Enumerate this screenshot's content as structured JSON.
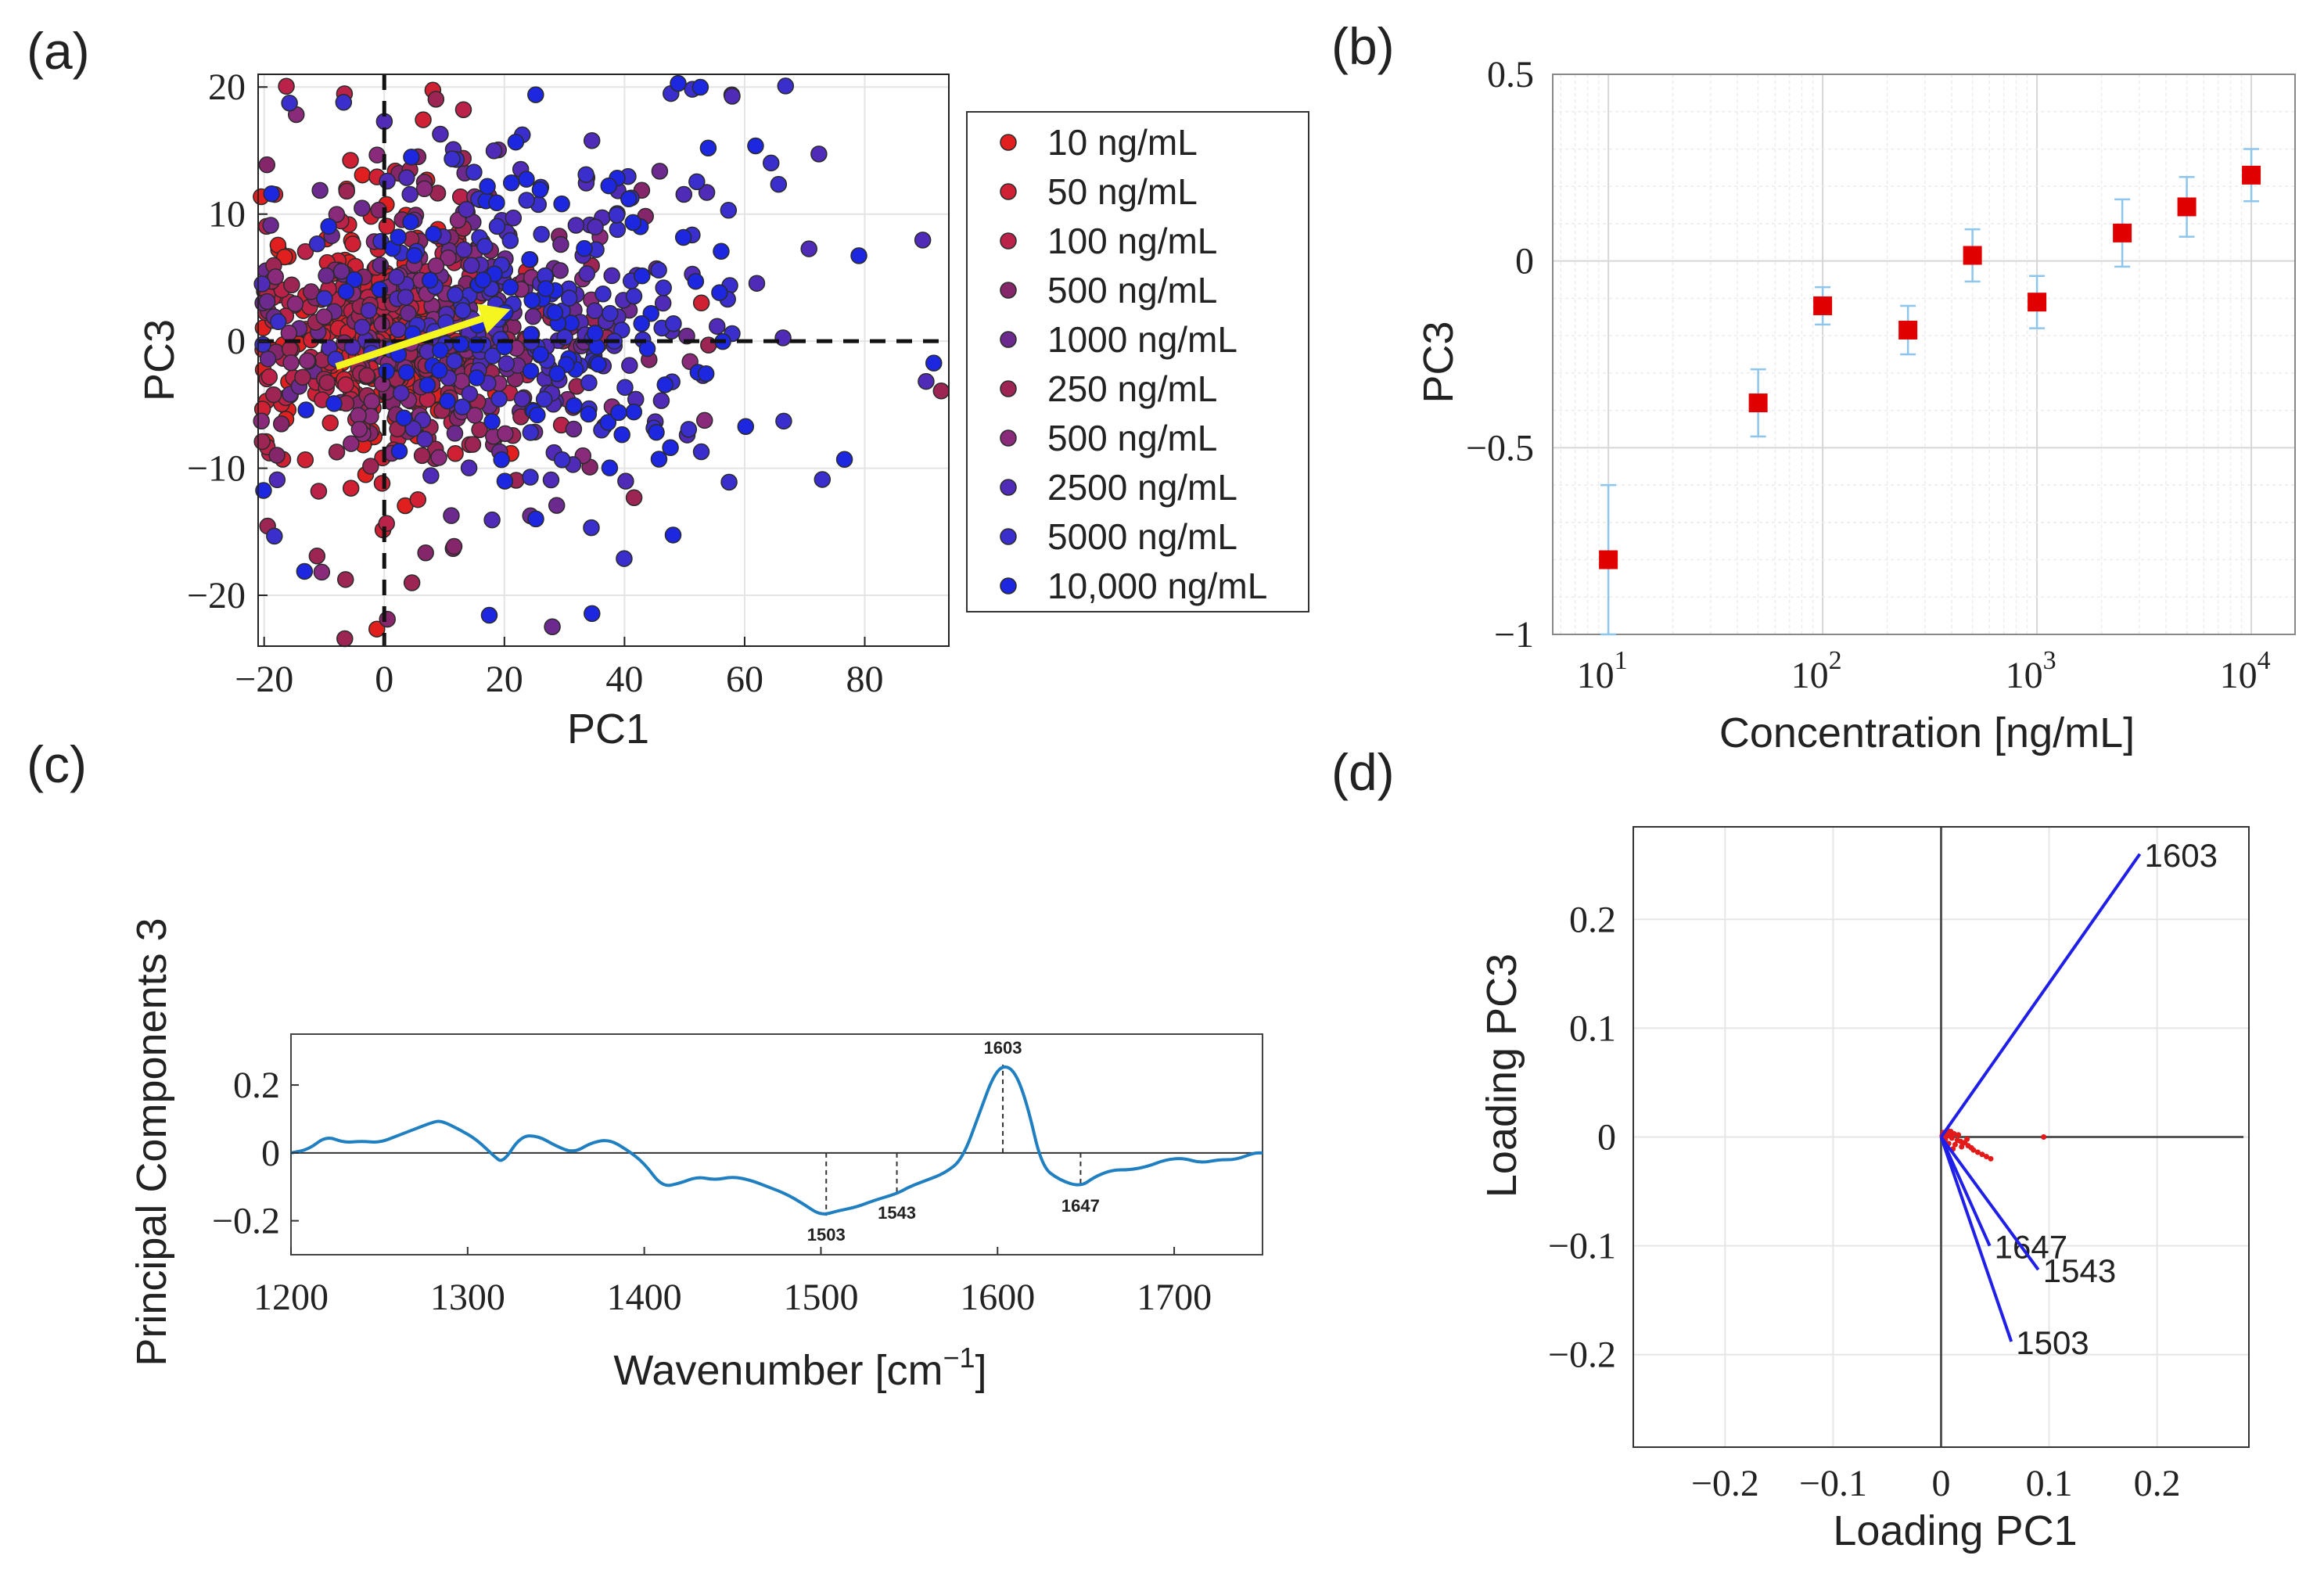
{
  "panels": {
    "a": {
      "label": "(a)"
    },
    "b": {
      "label": "(b)"
    },
    "c": {
      "label": "(c)"
    },
    "d": {
      "label": "(d)"
    }
  },
  "chart_data": [
    {
      "id": "a",
      "type": "scatter",
      "title": "",
      "xlabel": "PC1",
      "ylabel": "PC3",
      "xlim": [
        -21,
        94
      ],
      "ylim": [
        -24,
        21
      ],
      "xticks": [
        -20,
        0,
        20,
        40,
        60,
        80
      ],
      "yticks": [
        -20,
        -10,
        0,
        10,
        20
      ],
      "xtick_labels": [
        "−20",
        "0",
        "20",
        "40",
        "60",
        "80"
      ],
      "ytick_labels": [
        "−20",
        "−10",
        "0",
        "10",
        "20"
      ],
      "grid": true,
      "legend_position": "right",
      "reference_lines": {
        "x": 0,
        "y": 0,
        "style": "dashed"
      },
      "arrow": {
        "from": [
          -8,
          -2
        ],
        "to": [
          21,
          2.5
        ],
        "color": "#f5f520"
      },
      "series": [
        {
          "name": "10 ng/mL",
          "color": "#e21f1f",
          "center": [
            -2,
            1
          ],
          "spread": [
            10,
            4.5
          ],
          "count": 140
        },
        {
          "name": "50 ng/mL",
          "color": "#cf2034",
          "center": [
            0,
            0.5
          ],
          "spread": [
            11,
            5
          ],
          "count": 130
        },
        {
          "name": "100 ng/mL",
          "color": "#bb2249",
          "center": [
            3,
            1
          ],
          "spread": [
            13,
            5.5
          ],
          "count": 120
        },
        {
          "name": "500 ng/mL",
          "color": "#85266a",
          "center": [
            8,
            0.5
          ],
          "spread": [
            16,
            6.5
          ],
          "count": 90
        },
        {
          "name": "1000 ng/mL",
          "color": "#6d2a8e",
          "center": [
            12,
            2
          ],
          "spread": [
            18,
            7
          ],
          "count": 90
        },
        {
          "name": "250 ng/mL",
          "color": "#9c2553",
          "center": [
            6,
            -1
          ],
          "spread": [
            16,
            7
          ],
          "count": 90
        },
        {
          "name": "500 ng/mL",
          "color": "#8a2a7a",
          "center": [
            10,
            1
          ],
          "spread": [
            18,
            7
          ],
          "count": 80
        },
        {
          "name": "2500 ng/mL",
          "color": "#4f2bb8",
          "center": [
            22,
            3
          ],
          "spread": [
            20,
            8
          ],
          "count": 120
        },
        {
          "name": "5000 ng/mL",
          "color": "#3a2fcc",
          "center": [
            26,
            3
          ],
          "spread": [
            20,
            8
          ],
          "count": 110
        },
        {
          "name": "10,000 ng/mL",
          "color": "#1d27e0",
          "center": [
            24,
            2
          ],
          "spread": [
            22,
            9
          ],
          "count": 110
        }
      ]
    },
    {
      "id": "b",
      "type": "scatter",
      "title": "",
      "xlabel": "Concentration [ng/mL]",
      "ylabel": "PC3",
      "xscale": "log",
      "xlim": [
        5.5,
        16000
      ],
      "ylim": [
        -1,
        0.5
      ],
      "yticks": [
        -1,
        -0.5,
        0,
        0.5
      ],
      "ytick_labels": [
        "−1",
        "−0.5",
        "0",
        "0.5"
      ],
      "xtick_labels": [
        {
          "base": "10",
          "exp": "1"
        },
        {
          "base": "10",
          "exp": "2"
        },
        {
          "base": "10",
          "exp": "3"
        },
        {
          "base": "10",
          "exp": "4"
        }
      ],
      "grid": true,
      "marker_color": "#e00000",
      "errorbar_color": "#8ec5ec",
      "x": [
        10,
        50,
        100,
        250,
        500,
        1000,
        2500,
        5000,
        10000
      ],
      "y": [
        -0.8,
        -0.38,
        -0.12,
        -0.185,
        0.015,
        -0.11,
        0.075,
        0.145,
        0.23
      ],
      "yerr": [
        0.2,
        0.09,
        0.05,
        0.065,
        0.07,
        0.07,
        0.09,
        0.08,
        0.07
      ]
    },
    {
      "id": "c",
      "type": "line",
      "title": "",
      "xlabel": "Wavenumber [cm",
      "xlabel_sup": "−1",
      "xlabel_suffix": "]",
      "ylabel": "Principal Components 3",
      "xlim": [
        1200,
        1750
      ],
      "ylim": [
        -0.3,
        0.35
      ],
      "xticks": [
        1200,
        1300,
        1400,
        1500,
        1600,
        1700
      ],
      "yticks": [
        -0.2,
        0,
        0.2
      ],
      "ytick_labels": [
        "−0.2",
        "0",
        "0.2"
      ],
      "line_color": "#1f7fc0",
      "x": [
        1200,
        1210,
        1220,
        1230,
        1240,
        1250,
        1260,
        1270,
        1280,
        1285,
        1295,
        1305,
        1315,
        1320,
        1330,
        1340,
        1350,
        1360,
        1370,
        1380,
        1390,
        1400,
        1410,
        1420,
        1430,
        1440,
        1450,
        1460,
        1470,
        1480,
        1490,
        1500,
        1510,
        1520,
        1530,
        1543,
        1550,
        1560,
        1570,
        1580,
        1590,
        1597,
        1603,
        1610,
        1617,
        1625,
        1635,
        1647,
        1655,
        1665,
        1675,
        1685,
        1695,
        1705,
        1715,
        1725,
        1735,
        1745,
        1750
      ],
      "y": [
        0.0,
        0.01,
        0.05,
        0.03,
        0.035,
        0.03,
        0.05,
        0.07,
        0.09,
        0.095,
        0.07,
        0.04,
        -0.01,
        -0.03,
        0.05,
        0.05,
        0.02,
        0.0,
        0.03,
        0.04,
        0.01,
        -0.03,
        -0.1,
        -0.09,
        -0.07,
        -0.08,
        -0.07,
        -0.08,
        -0.1,
        -0.12,
        -0.15,
        -0.185,
        -0.17,
        -0.16,
        -0.14,
        -0.12,
        -0.1,
        -0.08,
        -0.06,
        -0.02,
        0.12,
        0.22,
        0.26,
        0.24,
        0.14,
        -0.04,
        -0.08,
        -0.1,
        -0.07,
        -0.05,
        -0.05,
        -0.04,
        -0.02,
        -0.015,
        -0.03,
        -0.02,
        -0.02,
        0.0,
        0.0
      ],
      "annotations": [
        {
          "x": 1503,
          "y": -0.185,
          "label": "1503",
          "position": "below"
        },
        {
          "x": 1543,
          "y": -0.12,
          "label": "1543",
          "position": "below"
        },
        {
          "x": 1603,
          "y": 0.26,
          "label": "1603",
          "position": "above"
        },
        {
          "x": 1647,
          "y": -0.1,
          "label": "1647",
          "position": "below"
        }
      ]
    },
    {
      "id": "d",
      "type": "scatter",
      "title": "",
      "xlabel": "Loading PC1",
      "ylabel": "Loading PC3",
      "xlim": [
        -0.285,
        0.285
      ],
      "ylim": [
        -0.285,
        0.285
      ],
      "xticks": [
        -0.2,
        -0.1,
        0,
        0.1,
        0.2
      ],
      "yticks": [
        -0.2,
        -0.1,
        0,
        0.1,
        0.2
      ],
      "xtick_labels": [
        "−0.2",
        "−0.1",
        "0",
        "0.1",
        "0.2"
      ],
      "ytick_labels": [
        "−0.2",
        "−0.1",
        "0",
        "0.1",
        "0.2"
      ],
      "grid": true,
      "vector_color": "#1f1fe8",
      "point_color": "#e41a1a",
      "vectors": [
        {
          "label": "1603",
          "x": 0.184,
          "y": 0.26
        },
        {
          "label": "1647",
          "x": 0.045,
          "y": -0.1
        },
        {
          "label": "1543",
          "x": 0.09,
          "y": -0.122
        },
        {
          "label": "1503",
          "x": 0.065,
          "y": -0.188
        }
      ],
      "points": [
        [
          0.002,
          0.004
        ],
        [
          0.005,
          0.002
        ],
        [
          0.008,
          0.001
        ],
        [
          0.01,
          -0.001
        ],
        [
          0.012,
          0.003
        ],
        [
          0.004,
          -0.002
        ],
        [
          0.015,
          -0.003
        ],
        [
          0.018,
          -0.004
        ],
        [
          0.02,
          -0.006
        ],
        [
          0.022,
          -0.005
        ],
        [
          0.025,
          -0.008
        ],
        [
          0.028,
          -0.01
        ],
        [
          0.03,
          -0.012
        ],
        [
          0.034,
          -0.014
        ],
        [
          0.038,
          -0.016
        ],
        [
          0.042,
          -0.018
        ],
        [
          0.046,
          -0.02
        ],
        [
          0.006,
          0.006
        ],
        [
          0.003,
          -0.004
        ],
        [
          0.001,
          0.001
        ],
        [
          0.009,
          0.005
        ],
        [
          0.013,
          -0.007
        ],
        [
          0.016,
          0.002
        ],
        [
          0.019,
          -0.009
        ],
        [
          0.024,
          -0.002
        ],
        [
          0.007,
          -0.006
        ],
        [
          0.011,
          -0.011
        ],
        [
          0.095,
          0.0
        ]
      ]
    }
  ]
}
